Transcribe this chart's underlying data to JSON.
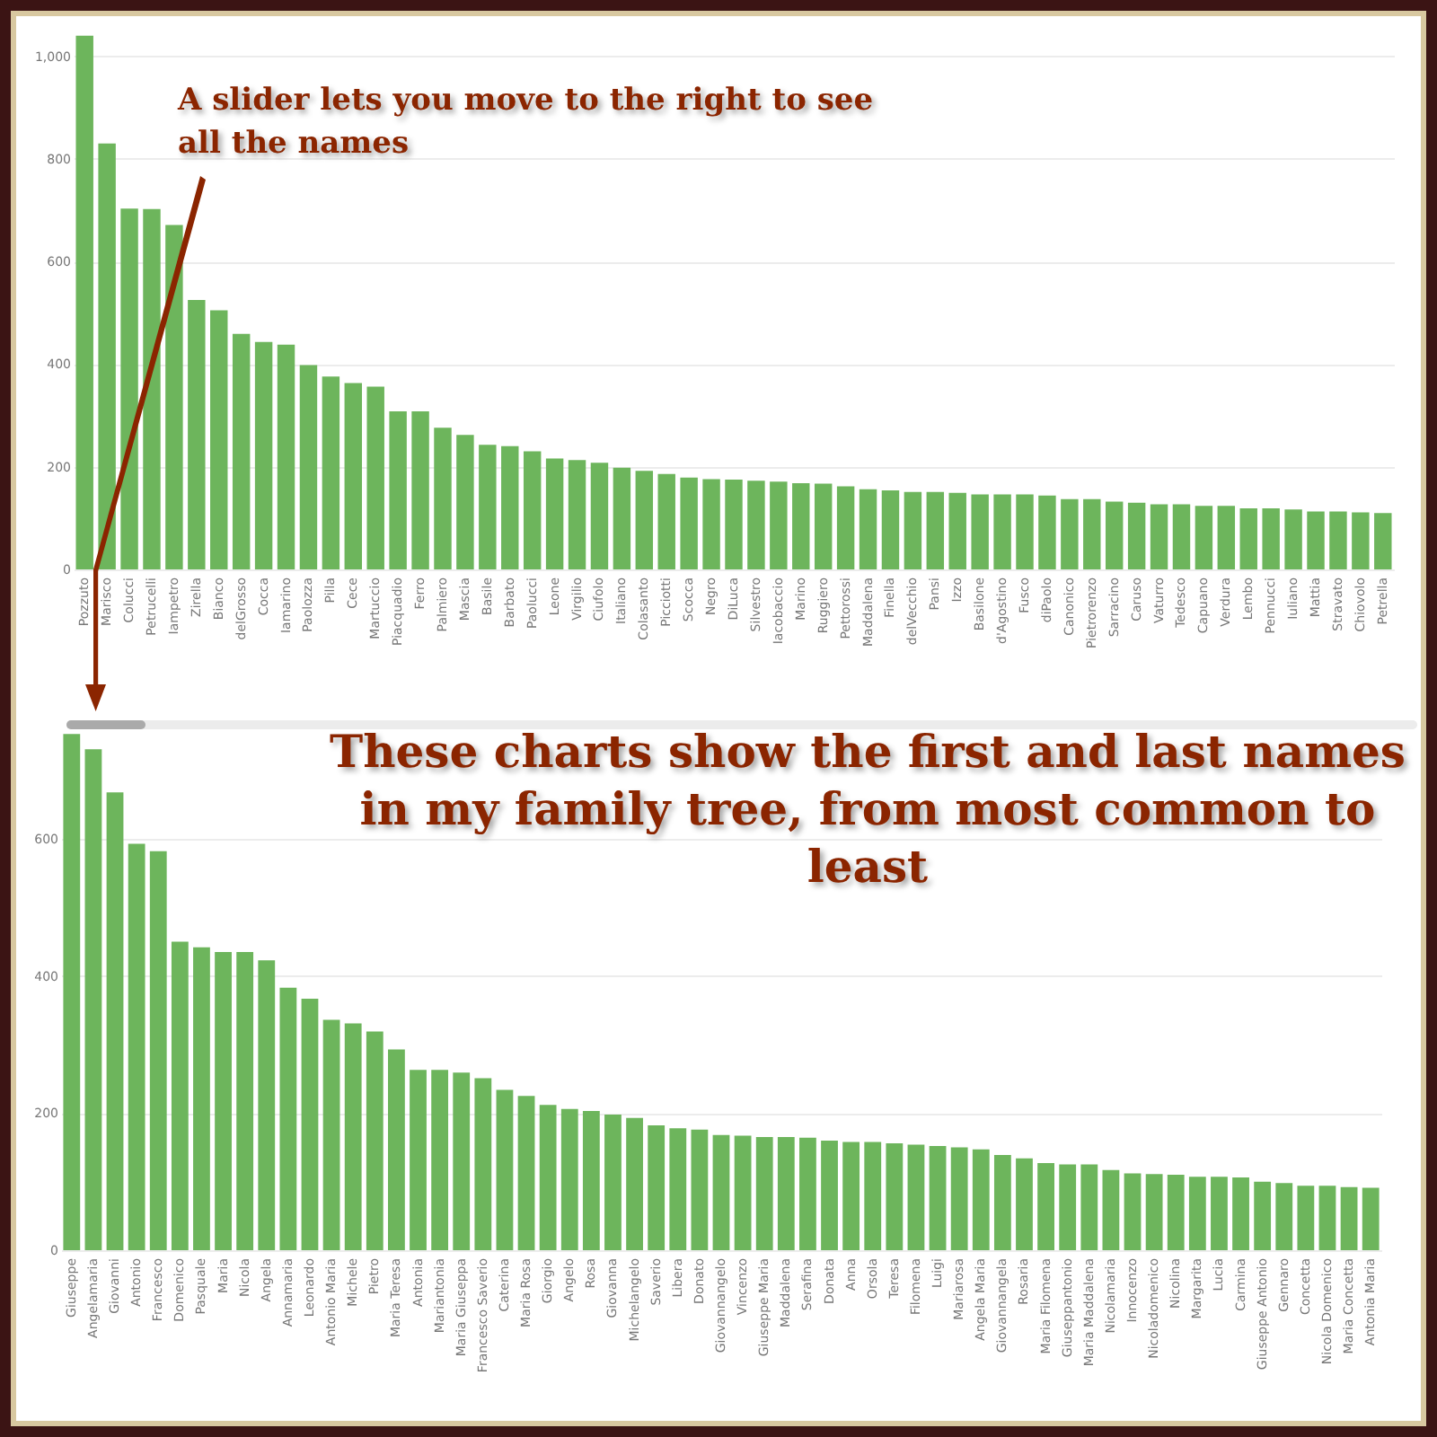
{
  "chart_data": [
    {
      "type": "bar",
      "color": "#6db55c",
      "grid": "y",
      "ylim": [
        0,
        1050
      ],
      "yticks": [
        0,
        200,
        400,
        600,
        800,
        {
          "value": 1000,
          "label": "1,000"
        }
      ],
      "annotations": [
        "A slider lets you move to the right to see all the names"
      ],
      "categories": [
        "Pozzuto",
        "Marisco",
        "Colucci",
        "Petrucelli",
        "Iampetro",
        "Zirella",
        "Bianco",
        "delGrosso",
        "Cocca",
        "Iamarino",
        "Paolozza",
        "Pilla",
        "Cece",
        "Martuccio",
        "Piacquadio",
        "Ferro",
        "Palmiero",
        "Mascia",
        "Basile",
        "Barbato",
        "Paolucci",
        "Leone",
        "Virgilio",
        "Ciufolo",
        "Italiano",
        "Colasanto",
        "Picciotti",
        "Scocca",
        "Negro",
        "DiLuca",
        "Silvestro",
        "Iacobaccio",
        "Marino",
        "Ruggiero",
        "Pettorossi",
        "Maddalena",
        "Finella",
        "delVecchio",
        "Pansi",
        "Izzo",
        "Basilone",
        "d'Agostino",
        "Fusco",
        "diPaolo",
        "Canonico",
        "Pietrorenzo",
        "Sarracino",
        "Caruso",
        "Vaturro",
        "Tedesco",
        "Capuano",
        "Verdura",
        "Lembo",
        "Pennucci",
        "Iuliano",
        "Mattia",
        "Stravato",
        "Chiovolo",
        "Petrella"
      ],
      "values": [
        1040,
        830,
        703,
        702,
        671,
        525,
        505,
        459,
        443,
        438,
        398,
        376,
        363,
        356,
        308,
        308,
        276,
        262,
        243,
        240,
        230,
        216,
        213,
        208,
        198,
        192,
        186,
        179,
        176,
        175,
        173,
        171,
        168,
        167,
        162,
        156,
        154,
        151,
        151,
        149,
        146,
        146,
        146,
        144,
        137,
        137,
        132,
        130,
        127,
        127,
        124,
        124,
        119,
        119,
        117,
        113,
        113,
        111,
        110
      ]
    },
    {
      "type": "bar",
      "color": "#6db55c",
      "grid": "y",
      "ylim": [
        0,
        760
      ],
      "yticks": [
        0,
        200,
        400,
        600
      ],
      "title": "These charts show the first and last names in my family tree, from most common to least",
      "categories": [
        "Giuseppe",
        "Angelamaria",
        "Giovanni",
        "Antonio",
        "Francesco",
        "Domenico",
        "Pasquale",
        "Maria",
        "Nicola",
        "Angela",
        "Annamaria",
        "Leonardo",
        "Antonio Maria",
        "Michele",
        "Pietro",
        "Maria Teresa",
        "Antonia",
        "Mariantonia",
        "Maria Giuseppa",
        "Francesco Saverio",
        "Caterina",
        "Maria Rosa",
        "Giorgio",
        "Angelo",
        "Rosa",
        "Giovanna",
        "Michelangelo",
        "Saverio",
        "Libera",
        "Donato",
        "Giovannangelo",
        "Vincenzo",
        "Giuseppe Maria",
        "Maddalena",
        "Serafina",
        "Donata",
        "Anna",
        "Orsola",
        "Teresa",
        "Filomena",
        "Luigi",
        "Mariarosa",
        "Angela Maria",
        "Giovannangela",
        "Rosaria",
        "Maria Filomena",
        "Giuseppantonio",
        "Maria Maddalena",
        "Nicolamaria",
        "Innocenzo",
        "Nicoladomenico",
        "Nicolina",
        "Margarita",
        "Lucia",
        "Carmina",
        "Giuseppe Antonio",
        "Gennaro",
        "Concetta",
        "Nicola Domenico",
        "Maria Concetta",
        "Antonia Maria"
      ],
      "values": [
        753,
        731,
        668,
        593,
        582,
        450,
        442,
        435,
        435,
        423,
        383,
        367,
        336,
        331,
        319,
        293,
        263,
        263,
        259,
        251,
        234,
        225,
        212,
        206,
        203,
        198,
        193,
        182,
        178,
        176,
        168,
        167,
        165,
        165,
        164,
        160,
        158,
        158,
        156,
        154,
        152,
        150,
        147,
        139,
        134,
        127,
        125,
        125,
        117,
        112,
        111,
        110,
        107,
        107,
        106,
        100,
        98,
        94,
        94,
        92,
        91
      ]
    }
  ]
}
